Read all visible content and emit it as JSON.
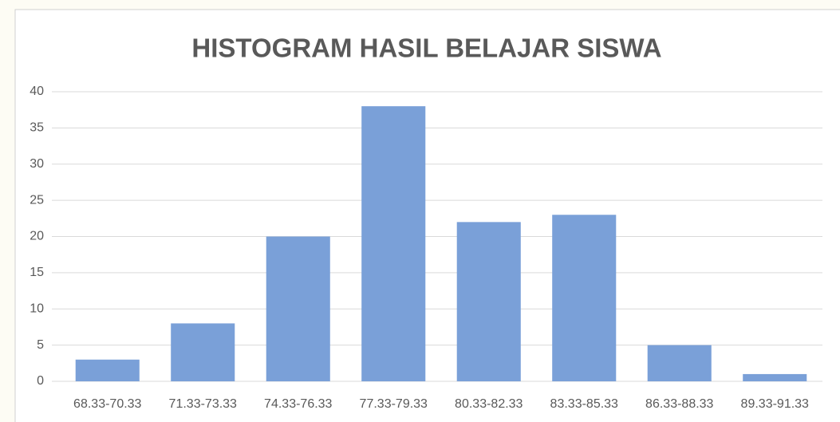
{
  "chart_data": {
    "type": "bar",
    "title": "HISTOGRAM HASIL BELAJAR SISWA",
    "categories": [
      "68.33-70.33",
      "71.33-73.33",
      "74.33-76.33",
      "77.33-79.33",
      "80.33-82.33",
      "83.33-85.33",
      "86.33-88.33",
      "89.33-91.33"
    ],
    "values": [
      3,
      8,
      20,
      38,
      22,
      23,
      5,
      1
    ],
    "color": "#7aa0d8",
    "ylim": [
      0,
      40
    ],
    "yticks": [
      0,
      5,
      10,
      15,
      20,
      25,
      30,
      35,
      40
    ],
    "grid": true
  }
}
